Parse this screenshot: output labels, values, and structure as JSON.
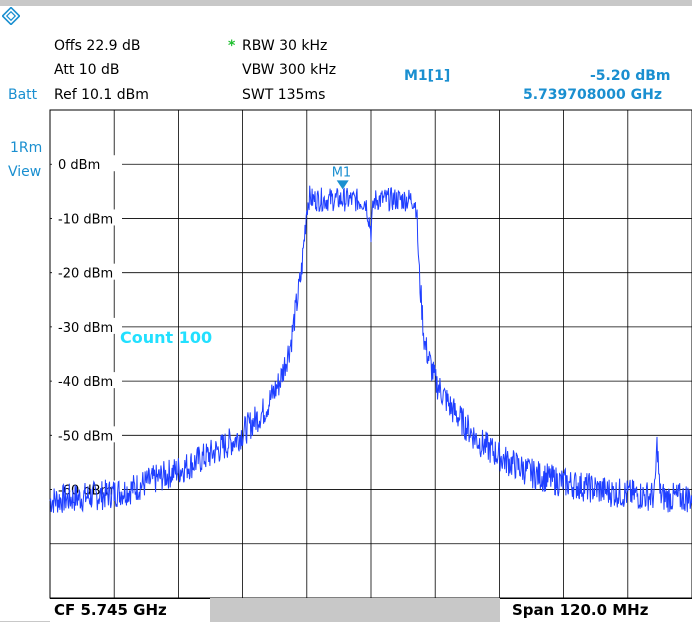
{
  "header": {
    "offs": "Offs 22.9 dB",
    "att": "Att   10 dB",
    "batt": "Batt",
    "ref": "Ref  10.1 dBm",
    "rbw_star": "*",
    "rbw": "RBW 30 kHz",
    "vbw": "VBW 300 kHz",
    "swt": "SWT 135ms",
    "marker_label": "M1[1]",
    "marker_level": "-5.20 dBm",
    "marker_freq": "5.739708000 GHz"
  },
  "side": {
    "trace": "1Rm",
    "view": "View"
  },
  "colors": {
    "trace": "#1f3fff",
    "marker": "#1a8fd0",
    "count": "#22e0ff",
    "grid": "#000000"
  },
  "chart_data": {
    "type": "line",
    "ylim": [
      -80,
      10
    ],
    "xlim": [
      5.685,
      5.805
    ],
    "yticks": [
      {
        "value": 0,
        "label": "0 dBm"
      },
      {
        "value": -10,
        "label": "-10 dBm"
      },
      {
        "value": -20,
        "label": "-20 dBm"
      },
      {
        "value": -30,
        "label": "-30 dBm"
      },
      {
        "value": -40,
        "label": "-40 dBm"
      },
      {
        "value": -50,
        "label": "-50 dBm"
      },
      {
        "value": -60,
        "label": "-60 dBm"
      }
    ],
    "grid": true,
    "annotation": "Count 100",
    "marker": {
      "name": "M1",
      "x": 5.739708,
      "y": -5.2
    },
    "cf": "CF 5.745 GHz",
    "span": "Span 120.0 MHz",
    "series": [
      {
        "x": [
          5.685,
          5.69,
          5.695,
          5.7,
          5.705,
          5.71,
          5.715,
          5.72,
          5.725,
          5.728,
          5.73,
          5.732,
          5.733,
          5.7335,
          5.734,
          5.736,
          5.74,
          5.744,
          5.745,
          5.7455,
          5.746,
          5.748,
          5.75,
          5.752,
          5.753,
          5.7535,
          5.754,
          5.755,
          5.757,
          5.76,
          5.765,
          5.77,
          5.775,
          5.78,
          5.785,
          5.79,
          5.795,
          5.798,
          5.7985,
          5.799,
          5.8,
          5.805
        ],
        "y": [
          -62,
          -61.5,
          -61,
          -60,
          -58,
          -56,
          -53.5,
          -50.5,
          -45.5,
          -40,
          -33,
          -20,
          -8,
          -6,
          -6.5,
          -6.5,
          -6.5,
          -6.8,
          -12,
          -7,
          -6.5,
          -6.5,
          -6.5,
          -6.5,
          -6.5,
          -8,
          -20,
          -33,
          -40,
          -45,
          -51,
          -54.5,
          -57,
          -58.5,
          -59.5,
          -60.5,
          -61,
          -61.2,
          -51,
          -61,
          -61.5,
          -61.5
        ]
      }
    ]
  }
}
